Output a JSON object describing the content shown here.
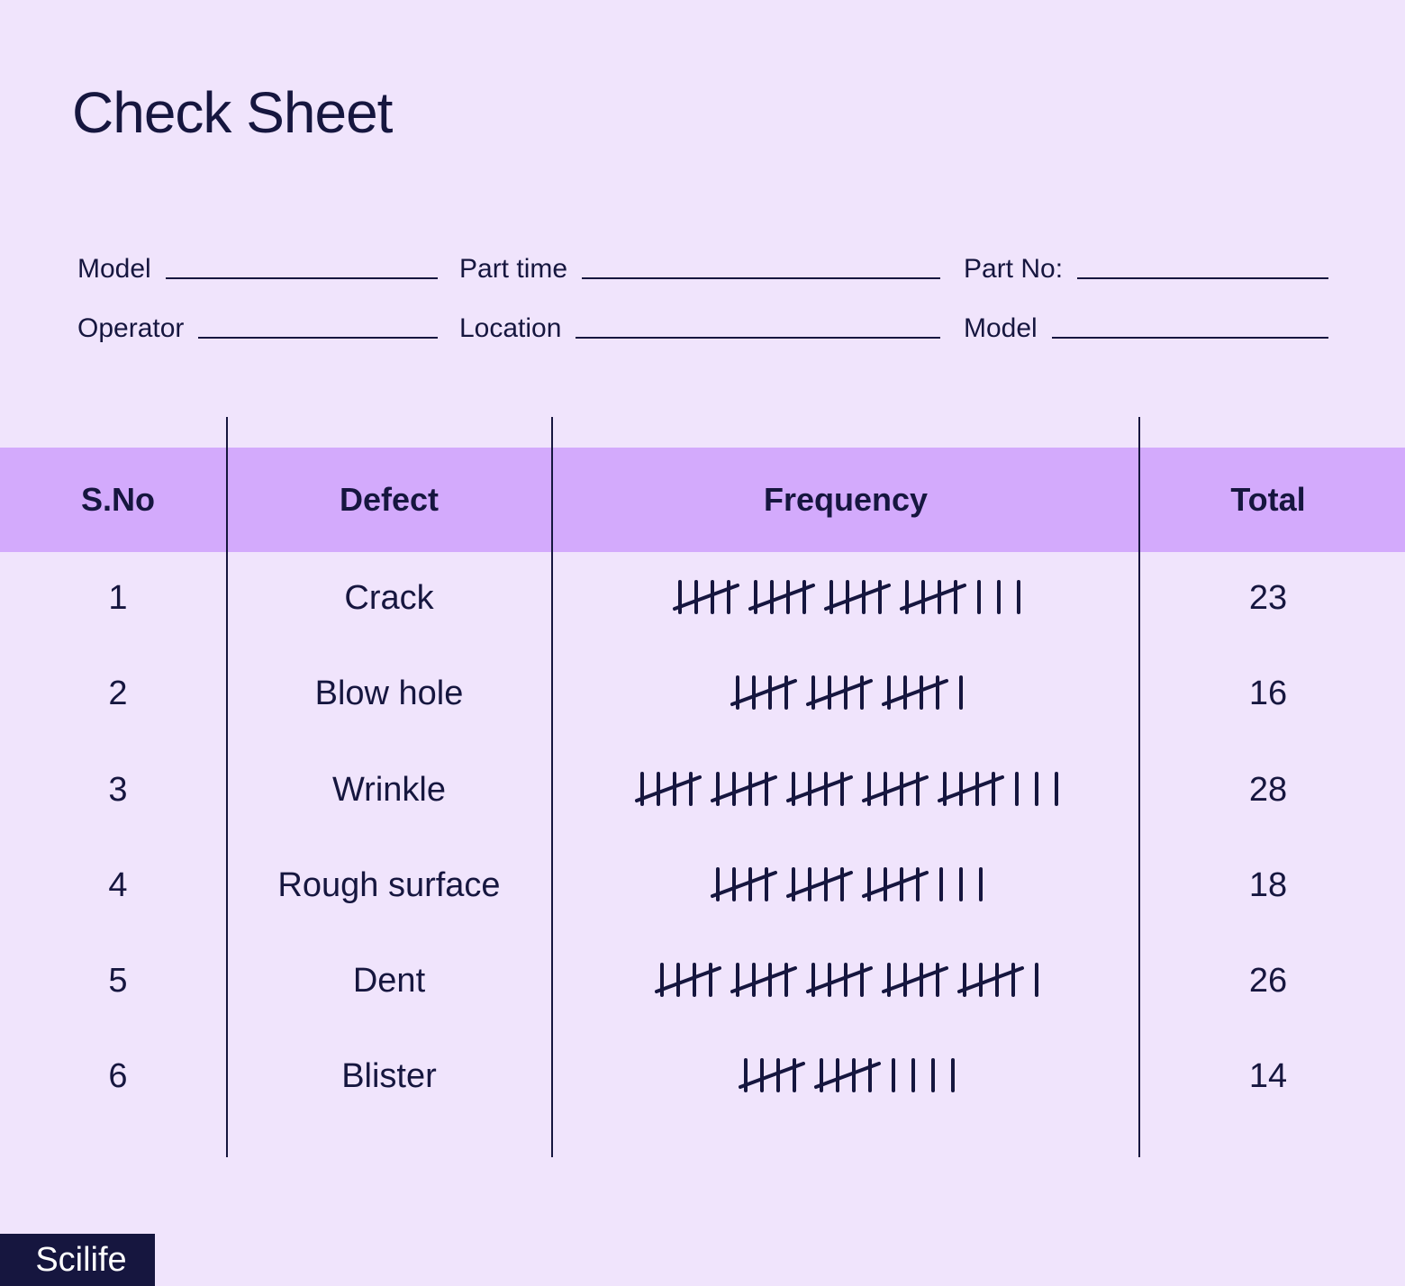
{
  "title": "Check Sheet",
  "form": {
    "row1": [
      "Model",
      "Part time",
      "Part No:"
    ],
    "row2": [
      "Operator",
      "Location",
      "Model"
    ]
  },
  "table": {
    "headers": [
      "S.No",
      "Defect",
      "Frequency",
      "Total"
    ],
    "rows": [
      {
        "sno": "1",
        "defect": "Crack",
        "tally": 23,
        "total": "23"
      },
      {
        "sno": "2",
        "defect": "Blow hole",
        "tally": 16,
        "total": "16"
      },
      {
        "sno": "3",
        "defect": "Wrinkle",
        "tally": 28,
        "total": "28"
      },
      {
        "sno": "4",
        "defect": "Rough surface",
        "tally": 18,
        "total": "18"
      },
      {
        "sno": "5",
        "defect": "Dent",
        "tally": 26,
        "total": "26"
      },
      {
        "sno": "6",
        "defect": "Blister",
        "tally": 14,
        "total": "14"
      }
    ]
  },
  "brand": "Scilife",
  "colors": {
    "background": "#f0e4fc",
    "header": "#d3aafc",
    "ink": "#16163f"
  }
}
